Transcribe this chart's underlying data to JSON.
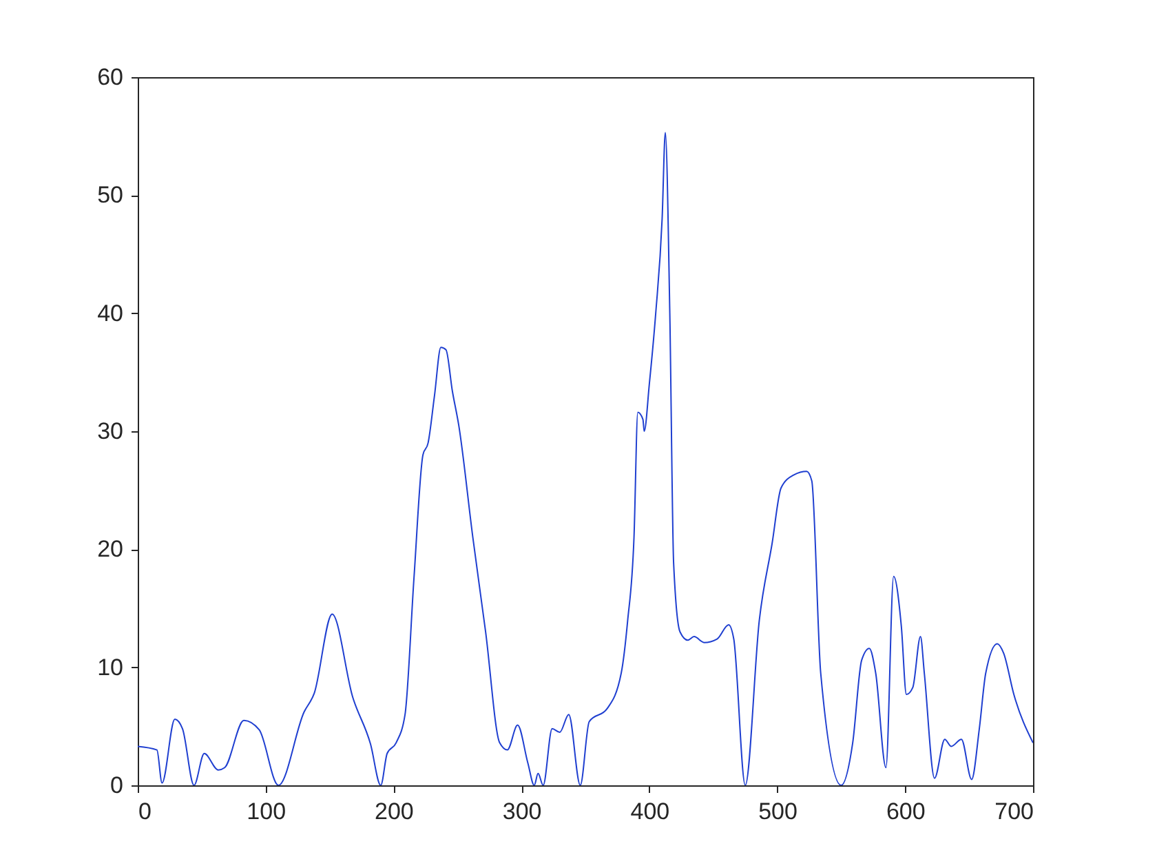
{
  "chart_data": {
    "type": "line",
    "xlim": [
      0,
      700
    ],
    "ylim": [
      0,
      60
    ],
    "xticks": [
      0,
      100,
      200,
      300,
      400,
      500,
      600,
      700
    ],
    "yticks": [
      0,
      10,
      20,
      30,
      40,
      50,
      60
    ],
    "grid": false,
    "x": [
      0,
      15,
      19,
      29,
      35,
      44,
      52,
      63,
      68,
      83,
      95,
      110,
      130,
      138,
      152,
      168,
      182,
      190,
      195,
      202,
      209,
      216,
      223,
      227,
      232,
      237,
      241,
      246,
      251,
      262,
      272,
      283,
      289,
      297,
      305,
      310,
      313,
      317,
      324,
      330,
      337,
      346,
      353,
      367,
      378,
      383,
      388,
      391,
      395,
      396,
      400,
      405,
      410,
      412.5,
      416,
      419,
      424,
      430,
      435,
      443,
      453,
      462,
      466,
      475,
      486,
      496,
      503,
      513,
      523,
      527,
      534,
      550,
      559,
      566,
      572,
      577,
      585,
      591,
      597,
      601,
      606,
      612,
      615,
      623,
      631,
      636,
      644,
      652,
      658,
      663,
      672,
      677,
      685,
      700
    ],
    "series": [
      {
        "color": "#1f3fd0",
        "values": [
          3.3,
          3.0,
          0.2,
          5.6,
          4.8,
          0,
          2.7,
          1.3,
          1.5,
          5.5,
          4.7,
          0,
          6.2,
          7.8,
          14.5,
          7.5,
          3.5,
          0,
          2.7,
          3.6,
          6,
          17.6,
          28,
          29,
          33,
          37.1,
          36.9,
          33.4,
          30.5,
          21,
          13,
          3.6,
          3.0,
          5.1,
          1.9,
          0,
          1.0,
          0,
          4.8,
          4.5,
          6.0,
          0,
          5.4,
          6.5,
          9.5,
          13.9,
          21,
          31.6,
          31,
          30,
          34,
          40,
          48,
          55.3,
          40,
          18.8,
          13,
          12.3,
          12.6,
          12.1,
          12.4,
          13.6,
          12.4,
          0,
          14,
          20.5,
          25.2,
          26.3,
          26.6,
          25.8,
          9.5,
          0,
          3.6,
          10.6,
          11.6,
          9.5,
          1.5,
          17.7,
          13.5,
          7.7,
          8.3,
          12.6,
          9.5,
          0.6,
          3.9,
          3.3,
          3.9,
          0.5,
          4.8,
          9.5,
          12,
          11.2,
          7.7,
          3.6
        ]
      }
    ]
  }
}
